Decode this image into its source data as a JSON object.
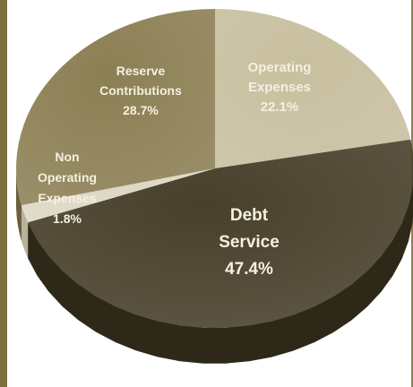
{
  "colors": {
    "frame": "#7d7040",
    "reserve": "#8c7f54",
    "operating": "#c8bf9f",
    "debt": "#48402b",
    "non_operating": "#ddd8c4",
    "label_light": "#f5f0e0",
    "label_dark": "#4a4230"
  },
  "chart_data": {
    "type": "pie",
    "title": "",
    "slices": [
      {
        "label": "Operating Expenses",
        "label_lines": [
          "Operating",
          "Expenses"
        ],
        "value": 22.1,
        "value_label": "22.1%"
      },
      {
        "label": "Debt Service",
        "label_lines": [
          "Debt",
          "Service"
        ],
        "value": 47.4,
        "value_label": "47.4%"
      },
      {
        "label": "Non Operating Expenses",
        "label_lines": [
          "Non",
          "Operating",
          "Expenses"
        ],
        "value": 1.8,
        "value_label": "1.8%"
      },
      {
        "label": "Reserve Contributions",
        "label_lines": [
          "Reserve",
          "Contributions"
        ],
        "value": 28.7,
        "value_label": "28.7%"
      }
    ],
    "start_angle": "12 o'clock",
    "direction": "clockwise",
    "style": "3d"
  }
}
